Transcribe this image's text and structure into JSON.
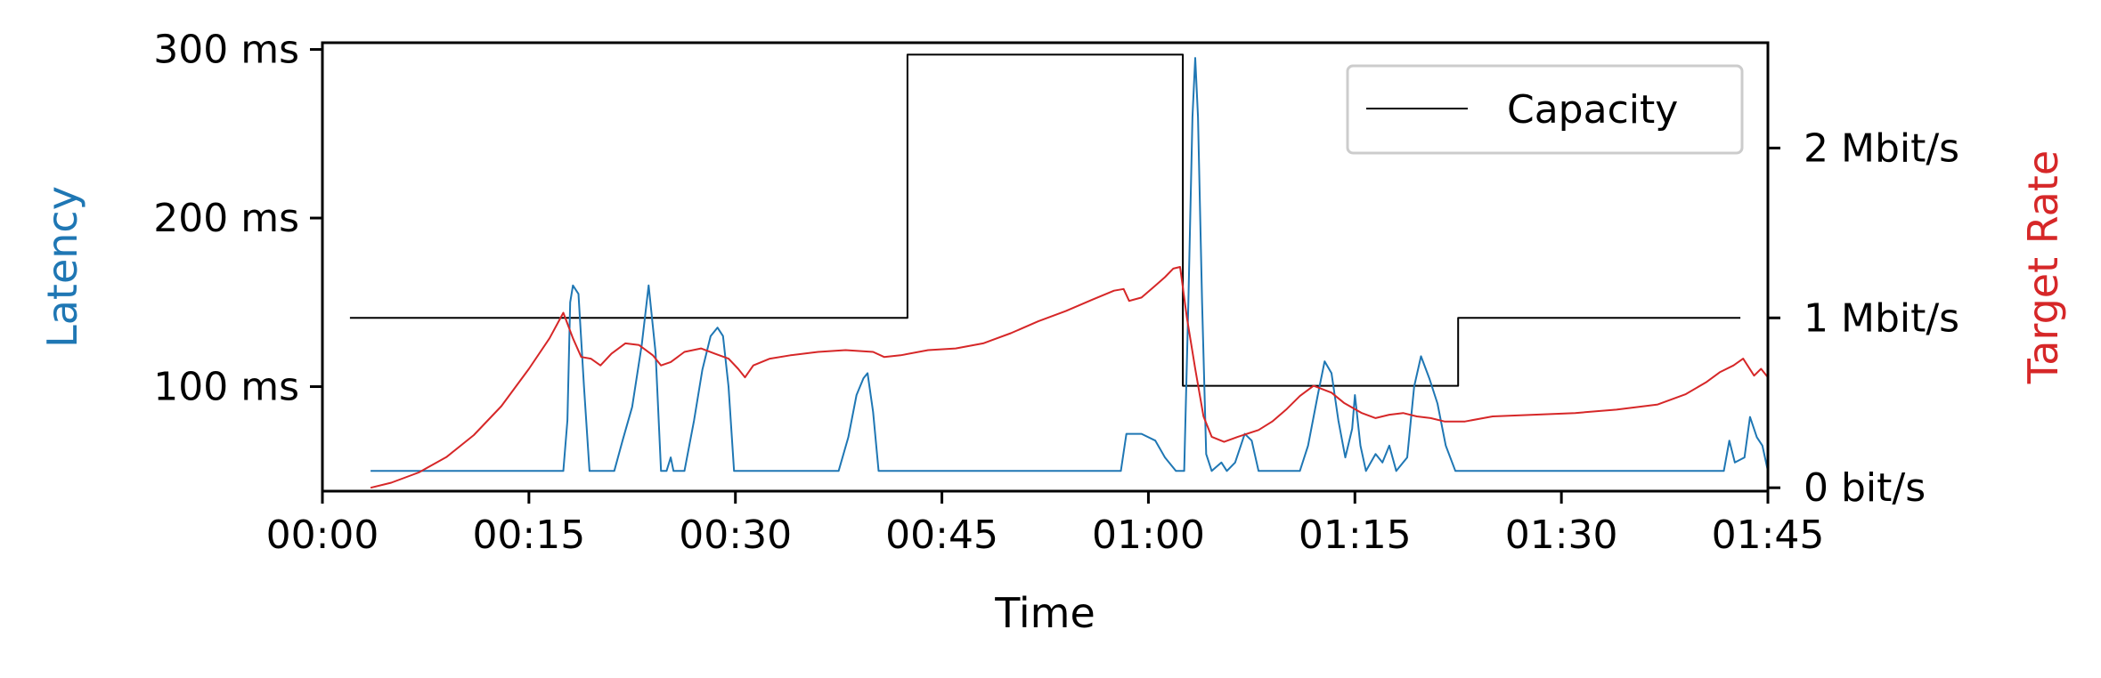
{
  "colors": {
    "latency": "#1f77b4",
    "target_rate": "#d62728",
    "capacity": "#000000",
    "legend_border": "#cccccc"
  },
  "chart_data": {
    "type": "line",
    "xlabel": "Time",
    "ylabel_left": "Latency",
    "ylabel_right": "Target Rate",
    "xlim_seconds": [
      0,
      105
    ],
    "xticks": [
      {
        "value": 0,
        "label": "00:00"
      },
      {
        "value": 15,
        "label": "00:15"
      },
      {
        "value": 30,
        "label": "00:30"
      },
      {
        "value": 45,
        "label": "00:45"
      },
      {
        "value": 60,
        "label": "01:00"
      },
      {
        "value": 75,
        "label": "01:15"
      },
      {
        "value": 90,
        "label": "01:30"
      },
      {
        "value": 105,
        "label": "01:45"
      }
    ],
    "ylim_left_ms": [
      38,
      304
    ],
    "yticks_left": [
      {
        "value": 100,
        "label": "100 ms"
      },
      {
        "value": 200,
        "label": "200 ms"
      },
      {
        "value": 300,
        "label": "300 ms"
      }
    ],
    "ylim_right_bps": [
      -20000,
      2620000
    ],
    "yticks_right": [
      {
        "value": 0,
        "label": "0 bit/s"
      },
      {
        "value": 1000000,
        "label": "1 Mbit/s"
      },
      {
        "value": 2000000,
        "label": "2 Mbit/s"
      }
    ],
    "grid": false,
    "legend": {
      "position": "top-right",
      "entries": [
        "Capacity"
      ]
    },
    "series": [
      {
        "name": "Capacity",
        "axis": "right",
        "step": true,
        "points": [
          [
            2,
            1000000
          ],
          [
            42.5,
            1000000
          ],
          [
            42.5,
            2550000
          ],
          [
            62.5,
            2550000
          ],
          [
            62.5,
            600000
          ],
          [
            82.5,
            600000
          ],
          [
            82.5,
            1000000
          ],
          [
            103,
            1000000
          ]
        ]
      },
      {
        "axis": "left",
        "points": [
          [
            3.5,
            50
          ],
          [
            17.5,
            50
          ],
          [
            17.8,
            80
          ],
          [
            18.0,
            150
          ],
          [
            18.2,
            160
          ],
          [
            18.6,
            155
          ],
          [
            19.0,
            100
          ],
          [
            19.4,
            50
          ],
          [
            21.2,
            50
          ],
          [
            21.8,
            68
          ],
          [
            22.5,
            88
          ],
          [
            23.2,
            125
          ],
          [
            23.7,
            160
          ],
          [
            24.2,
            120
          ],
          [
            24.6,
            50
          ],
          [
            25.0,
            50
          ],
          [
            25.3,
            58
          ],
          [
            25.5,
            50
          ],
          [
            26.3,
            50
          ],
          [
            27.0,
            80
          ],
          [
            27.6,
            110
          ],
          [
            28.2,
            130
          ],
          [
            28.7,
            135
          ],
          [
            29.1,
            130
          ],
          [
            29.5,
            100
          ],
          [
            29.9,
            50
          ],
          [
            37.5,
            50
          ],
          [
            38.2,
            70
          ],
          [
            38.8,
            95
          ],
          [
            39.3,
            105
          ],
          [
            39.6,
            108
          ],
          [
            40.0,
            85
          ],
          [
            40.4,
            50
          ],
          [
            58.0,
            50
          ],
          [
            58.4,
            72
          ],
          [
            59.5,
            72
          ],
          [
            60.5,
            68
          ],
          [
            61.2,
            58
          ],
          [
            62.0,
            50
          ],
          [
            62.6,
            50
          ],
          [
            62.9,
            150
          ],
          [
            63.2,
            260
          ],
          [
            63.4,
            295
          ],
          [
            63.6,
            260
          ],
          [
            63.9,
            150
          ],
          [
            64.2,
            60
          ],
          [
            64.6,
            50
          ],
          [
            65.3,
            55
          ],
          [
            65.7,
            50
          ],
          [
            66.3,
            55
          ],
          [
            67.0,
            72
          ],
          [
            67.5,
            68
          ],
          [
            68.0,
            50
          ],
          [
            71.0,
            50
          ],
          [
            71.6,
            65
          ],
          [
            72.3,
            95
          ],
          [
            72.8,
            115
          ],
          [
            73.3,
            108
          ],
          [
            73.8,
            80
          ],
          [
            74.3,
            58
          ],
          [
            74.8,
            75
          ],
          [
            75.0,
            95
          ],
          [
            75.4,
            65
          ],
          [
            75.8,
            50
          ],
          [
            76.5,
            60
          ],
          [
            77.0,
            55
          ],
          [
            77.5,
            65
          ],
          [
            78.0,
            50
          ],
          [
            78.8,
            58
          ],
          [
            79.3,
            100
          ],
          [
            79.8,
            118
          ],
          [
            80.4,
            105
          ],
          [
            81.0,
            90
          ],
          [
            81.6,
            65
          ],
          [
            82.3,
            50
          ],
          [
            101.8,
            50
          ],
          [
            102.2,
            68
          ],
          [
            102.6,
            55
          ],
          [
            103.3,
            58
          ],
          [
            103.7,
            82
          ],
          [
            104.2,
            70
          ],
          [
            104.6,
            65
          ],
          [
            105.0,
            50
          ]
        ]
      },
      {
        "axis": "right",
        "points": [
          [
            3.5,
            0
          ],
          [
            5,
            30000
          ],
          [
            7,
            90000
          ],
          [
            9,
            180000
          ],
          [
            11,
            310000
          ],
          [
            13,
            480000
          ],
          [
            15,
            700000
          ],
          [
            16.5,
            880000
          ],
          [
            17.5,
            1030000
          ],
          [
            18.2,
            880000
          ],
          [
            18.8,
            770000
          ],
          [
            19.5,
            760000
          ],
          [
            20.2,
            720000
          ],
          [
            21,
            790000
          ],
          [
            22,
            850000
          ],
          [
            23,
            840000
          ],
          [
            24,
            780000
          ],
          [
            24.6,
            720000
          ],
          [
            25.3,
            740000
          ],
          [
            26.3,
            800000
          ],
          [
            27.5,
            820000
          ],
          [
            28.5,
            790000
          ],
          [
            29.5,
            760000
          ],
          [
            30.2,
            700000
          ],
          [
            30.7,
            650000
          ],
          [
            31.3,
            720000
          ],
          [
            32.5,
            760000
          ],
          [
            34,
            780000
          ],
          [
            36,
            800000
          ],
          [
            38,
            810000
          ],
          [
            40,
            800000
          ],
          [
            40.8,
            770000
          ],
          [
            42,
            780000
          ],
          [
            44,
            810000
          ],
          [
            46,
            820000
          ],
          [
            48,
            850000
          ],
          [
            50,
            910000
          ],
          [
            52,
            980000
          ],
          [
            54,
            1040000
          ],
          [
            56,
            1110000
          ],
          [
            57.5,
            1160000
          ],
          [
            58.2,
            1170000
          ],
          [
            58.6,
            1100000
          ],
          [
            59.5,
            1120000
          ],
          [
            60.5,
            1190000
          ],
          [
            61.2,
            1240000
          ],
          [
            61.8,
            1290000
          ],
          [
            62.3,
            1300000
          ],
          [
            62.8,
            1000000
          ],
          [
            63.4,
            700000
          ],
          [
            64,
            420000
          ],
          [
            64.6,
            300000
          ],
          [
            65.5,
            270000
          ],
          [
            66.5,
            300000
          ],
          [
            68,
            340000
          ],
          [
            69,
            390000
          ],
          [
            70,
            460000
          ],
          [
            71,
            540000
          ],
          [
            72,
            600000
          ],
          [
            73.3,
            560000
          ],
          [
            74.2,
            500000
          ],
          [
            75.5,
            440000
          ],
          [
            76.5,
            410000
          ],
          [
            77.5,
            430000
          ],
          [
            78.5,
            440000
          ],
          [
            79.5,
            420000
          ],
          [
            80.5,
            410000
          ],
          [
            81.5,
            390000
          ],
          [
            83,
            390000
          ],
          [
            85,
            420000
          ],
          [
            88,
            430000
          ],
          [
            91,
            440000
          ],
          [
            94,
            460000
          ],
          [
            97,
            490000
          ],
          [
            99,
            550000
          ],
          [
            100.5,
            620000
          ],
          [
            101.5,
            680000
          ],
          [
            102.5,
            720000
          ],
          [
            103.2,
            760000
          ],
          [
            104,
            660000
          ],
          [
            104.5,
            700000
          ],
          [
            105,
            650000
          ]
        ]
      }
    ]
  }
}
